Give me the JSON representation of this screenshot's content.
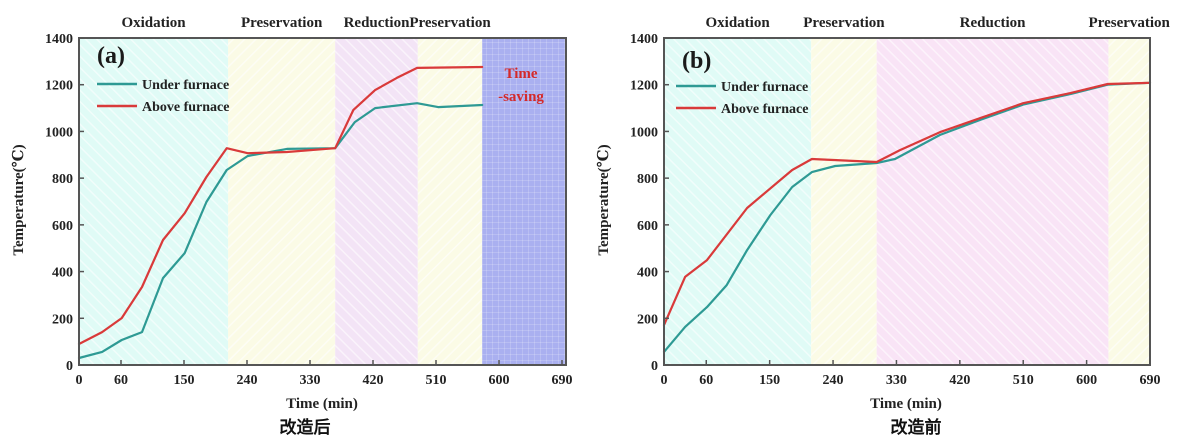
{
  "chart_data": [
    {
      "type": "line",
      "panel_label": "(a)",
      "caption": "改造后",
      "xlabel": "Time (min)",
      "ylabel": "Temperature(℃)",
      "xlim": [
        0,
        690
      ],
      "ylim": [
        0,
        1400
      ],
      "xticks": [
        0,
        60,
        150,
        240,
        330,
        420,
        510,
        600,
        690
      ],
      "yticks": [
        0,
        200,
        400,
        600,
        800,
        1000,
        1200,
        1400
      ],
      "legend": "top-left",
      "phases": [
        {
          "label": "Oxidation",
          "start": 0,
          "end": 213,
          "color": "#e0fbf6",
          "hatch": "back"
        },
        {
          "label": "Preservation",
          "start": 213,
          "end": 366,
          "color": "#fbfbe6",
          "hatch": "fwd"
        },
        {
          "label": "Reduction",
          "start": 366,
          "end": 484,
          "color": "#f3e4f6",
          "hatch": "back"
        },
        {
          "label": "Preservation",
          "start": 484,
          "end": 576,
          "color": "#fbfbe6",
          "hatch": "fwd"
        },
        {
          "label": "",
          "start": 576,
          "end": 690,
          "color": "#aab0f0",
          "hatch": "grid"
        }
      ],
      "annotation": {
        "line1": "Time",
        "line2": "-saving",
        "x": 633,
        "y": 1260
      },
      "series": [
        {
          "name": "Under furnace",
          "color": "#2e9a94",
          "x": [
            0,
            33,
            61,
            90,
            120,
            151,
            182,
            211,
            241,
            297,
            366,
            394,
            423,
            483,
            513,
            576
          ],
          "y": [
            30,
            56,
            107,
            141,
            372,
            479,
            698,
            835,
            895,
            925,
            928,
            1040,
            1100,
            1121,
            1104,
            1113
          ]
        },
        {
          "name": "Above furnace",
          "color": "#d93a3a",
          "x": [
            0,
            33,
            61,
            90,
            120,
            151,
            182,
            211,
            241,
            297,
            366,
            392,
            423,
            454,
            483,
            576
          ],
          "y": [
            90,
            141,
            201,
            334,
            535,
            650,
            805,
            928,
            907,
            912,
            928,
            1092,
            1177,
            1229,
            1272,
            1276
          ]
        }
      ]
    },
    {
      "type": "line",
      "panel_label": "(b)",
      "caption": "改造前",
      "xlabel": "Time (min)",
      "ylabel": "Temperature(℃)",
      "xlim": [
        0,
        690
      ],
      "ylim": [
        0,
        1400
      ],
      "xticks": [
        0,
        60,
        150,
        240,
        330,
        420,
        510,
        600,
        690
      ],
      "yticks": [
        0,
        200,
        400,
        600,
        800,
        1000,
        1200,
        1400
      ],
      "legend": "top-left",
      "phases": [
        {
          "label": "Oxidation",
          "start": 0,
          "end": 209,
          "color": "#e0fbf6",
          "hatch": "back"
        },
        {
          "label": "Preservation",
          "start": 209,
          "end": 302,
          "color": "#fbfbe6",
          "hatch": "fwd"
        },
        {
          "label": "Reduction",
          "start": 302,
          "end": 631,
          "color": "#f9e4f6",
          "hatch": "back"
        },
        {
          "label": "Preservation",
          "start": 631,
          "end": 690,
          "color": "#fbfbe6",
          "hatch": "fwd"
        }
      ],
      "series": [
        {
          "name": "Under furnace",
          "color": "#2e9a94",
          "x": [
            0,
            30,
            61,
            89,
            118,
            151,
            182,
            210,
            243,
            302,
            328,
            392,
            449,
            510,
            577,
            630,
            690
          ],
          "y": [
            56,
            163,
            248,
            342,
            492,
            642,
            762,
            826,
            852,
            865,
            882,
            985,
            1050,
            1115,
            1160,
            1200,
            1208
          ]
        },
        {
          "name": "Above furnace",
          "color": "#d93a3a",
          "x": [
            0,
            30,
            61,
            118,
            182,
            210,
            302,
            335,
            392,
            449,
            510,
            577,
            630,
            690
          ],
          "y": [
            171,
            377,
            449,
            672,
            835,
            882,
            869,
            920,
            997,
            1057,
            1121,
            1164,
            1203,
            1208
          ]
        }
      ]
    }
  ]
}
